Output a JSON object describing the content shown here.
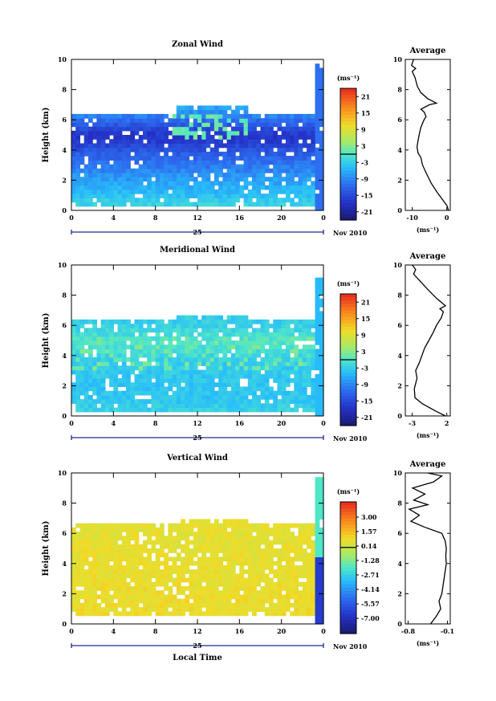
{
  "chart_data": [
    {
      "type": "heatmap",
      "title": "Zonal Wind",
      "xlabel": "",
      "ylabel": "Height (km)",
      "xlim": [
        0,
        24
      ],
      "ylim": [
        0,
        10
      ],
      "x_ticks": [
        "0",
        "4",
        "8",
        "12",
        "16",
        "20",
        "0"
      ],
      "y_ticks": [
        "0",
        "2",
        "4",
        "6",
        "8",
        "10"
      ],
      "date_bar": {
        "day": "25",
        "month_year": "Nov 2010"
      },
      "colorbar": {
        "unit": "(ms⁻¹)",
        "min": -24,
        "max": 24,
        "tick_labels": [
          "21",
          "15",
          "9",
          "3",
          "-3",
          "-9",
          "-15",
          "-21"
        ],
        "tick_values": [
          21,
          15,
          9,
          3,
          -3,
          -9,
          -15,
          -21
        ]
      },
      "field": [
        [
          0.0,
          -1.5
        ],
        [
          0.6,
          -3
        ],
        [
          1.2,
          -5
        ],
        [
          2.0,
          -7
        ],
        [
          2.6,
          -9
        ],
        [
          3.2,
          -11
        ],
        [
          3.8,
          -13
        ],
        [
          4.4,
          -16
        ],
        [
          5.0,
          -18
        ],
        [
          5.6,
          -14
        ],
        [
          6.2,
          -10
        ],
        [
          6.8,
          -7
        ]
      ],
      "profile": {
        "title": "Average",
        "xlabel": "(ms⁻¹)",
        "xlim": [
          -12,
          1
        ],
        "ylim": [
          0,
          10
        ],
        "x_ticks": [
          {
            "v": -10,
            "label": "-10"
          },
          {
            "v": 0,
            "label": "0"
          }
        ],
        "y_ticks": [
          "0",
          "2",
          "4",
          "6",
          "8",
          "10"
        ],
        "points": [
          [
            0.5,
            0
          ],
          [
            0.1,
            0.3
          ],
          [
            -1.2,
            0.7
          ],
          [
            -2.8,
            1.2
          ],
          [
            -4.5,
            1.8
          ],
          [
            -6.0,
            2.5
          ],
          [
            -7.0,
            3.0
          ],
          [
            -7.5,
            3.5
          ],
          [
            -8.3,
            3.8
          ],
          [
            -8.6,
            4.2
          ],
          [
            -8.4,
            4.5
          ],
          [
            -8.0,
            5.0
          ],
          [
            -7.5,
            5.5
          ],
          [
            -6.6,
            6.0
          ],
          [
            -6.0,
            6.2
          ],
          [
            -6.5,
            6.5
          ],
          [
            -7.5,
            6.7
          ],
          [
            -5.0,
            7.0
          ],
          [
            -3.0,
            7.1
          ],
          [
            -5.5,
            7.4
          ],
          [
            -7.5,
            7.8
          ],
          [
            -8.5,
            8.2
          ],
          [
            -9.2,
            8.8
          ],
          [
            -10.0,
            9.2
          ],
          [
            -9.0,
            9.4
          ],
          [
            -10.2,
            9.6
          ],
          [
            -9.6,
            10.0
          ]
        ]
      }
    },
    {
      "type": "heatmap",
      "title": "Meridional Wind",
      "xlabel": "",
      "ylabel": "Height (km)",
      "xlim": [
        0,
        24
      ],
      "ylim": [
        0,
        10
      ],
      "x_ticks": [
        "0",
        "4",
        "8",
        "12",
        "16",
        "20",
        "0"
      ],
      "y_ticks": [
        "0",
        "2",
        "4",
        "6",
        "8",
        "10"
      ],
      "date_bar": {
        "day": "25",
        "month_year": "Nov 2010"
      },
      "colorbar": {
        "unit": "(ms⁻¹)",
        "min": -24,
        "max": 24,
        "tick_labels": [
          "21",
          "15",
          "9",
          "3",
          "-3",
          "-9",
          "-15",
          "-21"
        ],
        "tick_values": [
          21,
          15,
          9,
          3,
          -3,
          -9,
          -15,
          -21
        ]
      },
      "field": [
        [
          0.0,
          -2
        ],
        [
          0.6,
          -3
        ],
        [
          1.2,
          -4
        ],
        [
          2.0,
          -4
        ],
        [
          2.8,
          -3.5
        ],
        [
          3.6,
          -3
        ],
        [
          4.4,
          -1
        ],
        [
          5.0,
          0
        ],
        [
          5.6,
          -1.5
        ],
        [
          6.2,
          -3
        ]
      ],
      "profile": {
        "title": "Average",
        "xlabel": "(ms⁻¹)",
        "xlim": [
          -4,
          2.5
        ],
        "ylim": [
          0,
          10
        ],
        "x_ticks": [
          {
            "v": -3,
            "label": "-3"
          },
          {
            "v": 2,
            "label": "2"
          }
        ],
        "y_ticks": [
          "0",
          "2",
          "4",
          "6",
          "8",
          "10"
        ],
        "points": [
          [
            1.8,
            0
          ],
          [
            0.5,
            0.3
          ],
          [
            -1.5,
            0.8
          ],
          [
            -2.6,
            1.2
          ],
          [
            -2.7,
            1.8
          ],
          [
            -2.3,
            2.5
          ],
          [
            -2.5,
            3.0
          ],
          [
            -2.0,
            3.5
          ],
          [
            -1.6,
            4.0
          ],
          [
            -1.2,
            4.5
          ],
          [
            -0.6,
            5.0
          ],
          [
            0.0,
            5.5
          ],
          [
            0.5,
            6.0
          ],
          [
            1.2,
            6.5
          ],
          [
            1.5,
            6.9
          ],
          [
            1.0,
            7.1
          ],
          [
            1.8,
            7.3
          ],
          [
            0.5,
            7.8
          ],
          [
            -0.8,
            8.4
          ],
          [
            -1.8,
            8.9
          ],
          [
            -2.8,
            9.4
          ],
          [
            -2.5,
            9.7
          ],
          [
            -3.0,
            10.0
          ]
        ]
      }
    },
    {
      "type": "heatmap",
      "title": "Vertical Wind",
      "xlabel": "Local Time",
      "ylabel": "Height (km)",
      "xlim": [
        0,
        24
      ],
      "ylim": [
        0,
        10
      ],
      "x_ticks": [
        "0",
        "4",
        "8",
        "12",
        "16",
        "20",
        "0"
      ],
      "y_ticks": [
        "0",
        "2",
        "4",
        "6",
        "8",
        "10"
      ],
      "date_bar": {
        "day": "25",
        "month_year": "Nov 2010"
      },
      "colorbar": {
        "unit": "(ms⁻¹)",
        "min": -8.5,
        "max": 4.5,
        "tick_labels": [
          "3.00",
          "1.57",
          "0.14",
          "-1.28",
          "-2.71",
          "-4.14",
          "-5.57",
          "-7.00"
        ],
        "tick_values": [
          3.0,
          1.57,
          0.14,
          -1.28,
          -2.71,
          -4.14,
          -5.57,
          -7.0
        ]
      },
      "field": [
        [
          0.0,
          0.8
        ],
        [
          6.5,
          0.6
        ]
      ],
      "profile": {
        "title": "Average",
        "xlabel": "(ms⁻¹)",
        "xlim": [
          -0.85,
          -0.05
        ],
        "ylim": [
          0,
          10
        ],
        "x_ticks": [
          {
            "v": -0.8,
            "label": "-0.8"
          },
          {
            "v": -0.1,
            "label": "-0.1"
          }
        ],
        "y_ticks": [
          "0",
          "2",
          "4",
          "6",
          "8",
          "10"
        ],
        "points": [
          [
            -0.4,
            0
          ],
          [
            -0.3,
            0.5
          ],
          [
            -0.22,
            1.0
          ],
          [
            -0.25,
            1.5
          ],
          [
            -0.2,
            2.0
          ],
          [
            -0.18,
            2.5
          ],
          [
            -0.16,
            3.0
          ],
          [
            -0.14,
            3.5
          ],
          [
            -0.12,
            4.0
          ],
          [
            -0.13,
            4.5
          ],
          [
            -0.12,
            5.0
          ],
          [
            -0.14,
            5.5
          ],
          [
            -0.2,
            6.0
          ],
          [
            -0.5,
            6.4
          ],
          [
            -0.75,
            6.8
          ],
          [
            -0.6,
            7.2
          ],
          [
            -0.78,
            7.6
          ],
          [
            -0.45,
            7.9
          ],
          [
            -0.7,
            8.2
          ],
          [
            -0.5,
            8.6
          ],
          [
            -0.72,
            9.0
          ],
          [
            -0.35,
            9.4
          ],
          [
            -0.2,
            9.8
          ],
          [
            -0.45,
            10.0
          ]
        ]
      }
    }
  ]
}
